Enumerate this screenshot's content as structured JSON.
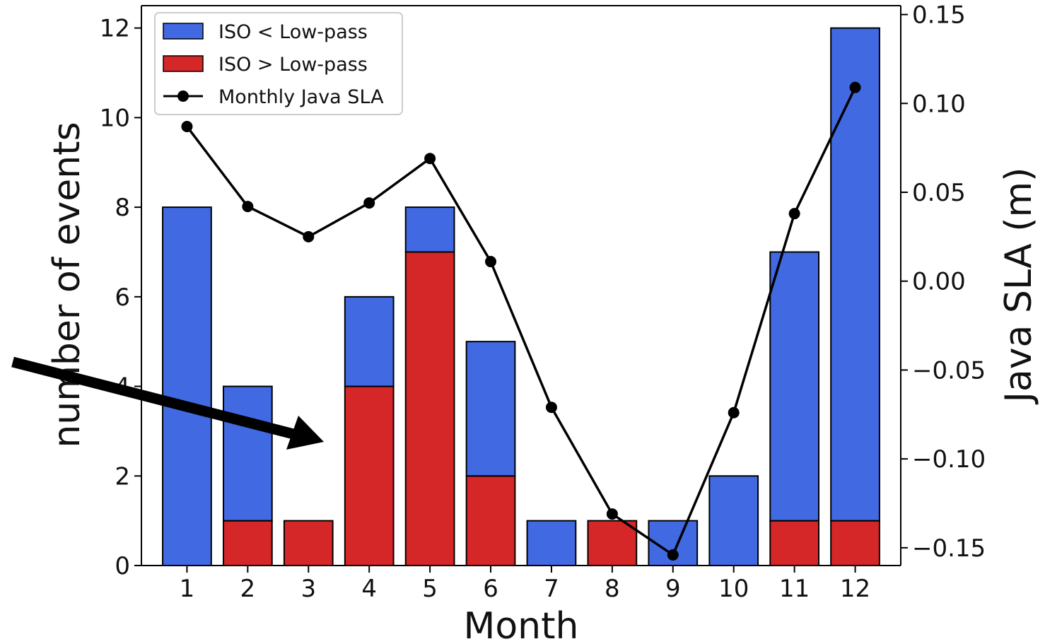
{
  "chart_data": {
    "type": "bar",
    "stacked": true,
    "categories": [
      "1",
      "2",
      "3",
      "4",
      "5",
      "6",
      "7",
      "8",
      "9",
      "10",
      "11",
      "12"
    ],
    "series": [
      {
        "name": "ISO > Low-pass",
        "color": "#d62728",
        "values": [
          0,
          1,
          1,
          4,
          7,
          2,
          0,
          1,
          0,
          0,
          1,
          1
        ],
        "axis": "left",
        "kind": "bar"
      },
      {
        "name": "ISO < Low-pass",
        "color": "#4169e1",
        "values": [
          8,
          3,
          0,
          2,
          1,
          3,
          1,
          0,
          1,
          2,
          6,
          11
        ],
        "axis": "left",
        "kind": "bar"
      },
      {
        "name": "Monthly Java SLA",
        "color": "#000000",
        "values": [
          0.087,
          0.042,
          0.025,
          0.044,
          0.069,
          0.011,
          -0.071,
          -0.131,
          -0.154,
          -0.074,
          0.038,
          0.109
        ],
        "axis": "right",
        "kind": "line"
      }
    ],
    "legend_order": [
      "ISO < Low-pass",
      "ISO > Low-pass",
      "Monthly Java SLA"
    ],
    "xlabel": "Month",
    "ylabel": "number of events",
    "ylabel_right": "Java SLA (m)",
    "ylim": [
      0,
      12.5
    ],
    "ylim_right": [
      -0.16,
      0.155
    ],
    "yticks": [
      0,
      2,
      4,
      6,
      8,
      10,
      12
    ],
    "yticks_right": [
      "0.15",
      "0.10",
      "0.05",
      "0.00",
      "−0.05",
      "−0.10",
      "−0.15"
    ],
    "yticks_right_values": [
      0.15,
      0.1,
      0.05,
      0.0,
      -0.05,
      -0.1,
      -0.15
    ],
    "legend_position": "top-left",
    "grid": false,
    "annotation": "black arrow pointing toward month 4"
  }
}
